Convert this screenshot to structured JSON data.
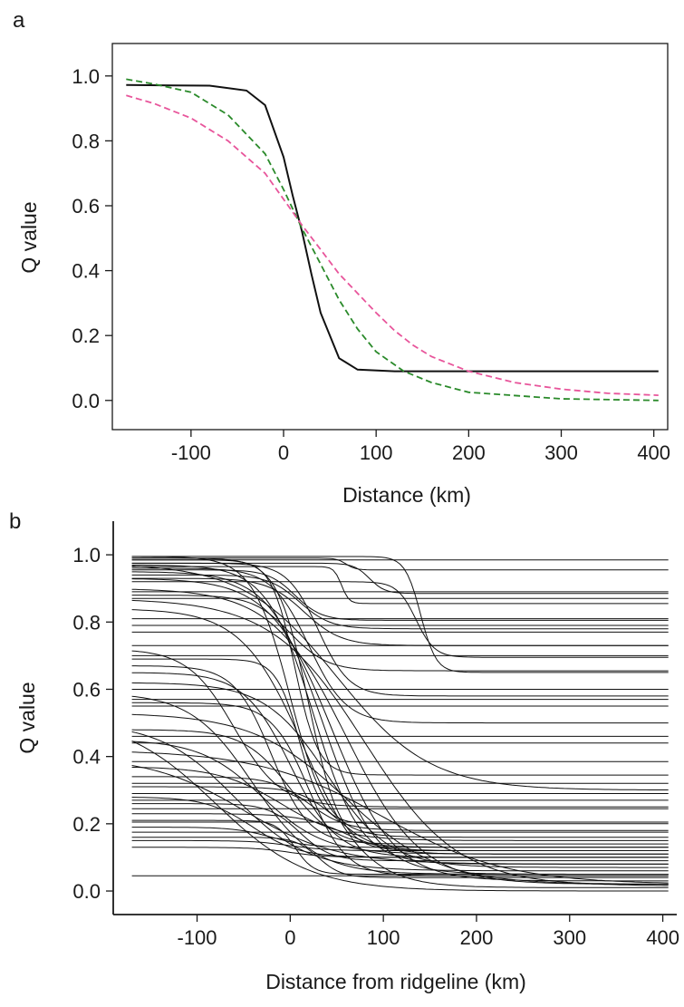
{
  "chart_data": [
    {
      "panel_label": "a",
      "type": "line",
      "xlabel": "Distance (km)",
      "ylabel": "Q value",
      "xlim": [
        -185,
        415
      ],
      "ylim": [
        -0.09,
        1.1
      ],
      "xticks": [
        -100,
        0,
        100,
        200,
        300,
        400
      ],
      "xtick_labels": [
        "-100",
        "0",
        "100",
        "200",
        "300",
        "400"
      ],
      "yticks": [
        0.0,
        0.2,
        0.4,
        0.6,
        0.8,
        1.0
      ],
      "ytick_labels": [
        "0.0",
        "0.2",
        "0.4",
        "0.6",
        "0.8",
        "1.0"
      ],
      "frame": "box",
      "grid": false,
      "legend": "none",
      "series": [
        {
          "style": "solid",
          "color": "#111111",
          "x": [
            -170,
            -120,
            -80,
            -40,
            -20,
            0,
            10,
            20,
            30,
            40,
            60,
            80,
            120,
            200,
            300,
            405
          ],
          "y": [
            0.972,
            0.971,
            0.97,
            0.955,
            0.91,
            0.75,
            0.63,
            0.52,
            0.39,
            0.27,
            0.13,
            0.095,
            0.09,
            0.09,
            0.09,
            0.09
          ]
        },
        {
          "style": "dashed",
          "color": "#2a8a2a",
          "x": [
            -170,
            -140,
            -100,
            -60,
            -20,
            0,
            20,
            40,
            60,
            80,
            100,
            130,
            160,
            200,
            300,
            405
          ],
          "y": [
            0.99,
            0.975,
            0.95,
            0.88,
            0.76,
            0.65,
            0.53,
            0.42,
            0.31,
            0.22,
            0.15,
            0.09,
            0.055,
            0.025,
            0.005,
            0.0
          ]
        },
        {
          "style": "dashed",
          "color": "#e8559b",
          "x": [
            -170,
            -140,
            -100,
            -60,
            -20,
            0,
            20,
            40,
            60,
            80,
            100,
            120,
            140,
            160,
            200,
            250,
            300,
            350,
            405
          ],
          "y": [
            0.94,
            0.915,
            0.87,
            0.8,
            0.7,
            0.62,
            0.54,
            0.465,
            0.39,
            0.33,
            0.27,
            0.215,
            0.17,
            0.135,
            0.09,
            0.055,
            0.035,
            0.022,
            0.016
          ]
        }
      ]
    },
    {
      "panel_label": "b",
      "type": "line",
      "xlabel": "Distance from ridgeline (km)",
      "ylabel": "Q value",
      "xlim": [
        -190,
        415
      ],
      "ylim": [
        -0.07,
        1.1
      ],
      "xticks": [
        -100,
        0,
        100,
        200,
        300,
        400
      ],
      "xtick_labels": [
        "-100",
        "0",
        "100",
        "200",
        "300",
        "400"
      ],
      "yticks": [
        0.0,
        0.2,
        0.4,
        0.6,
        0.8,
        1.0
      ],
      "ytick_labels": [
        "0.0",
        "0.2",
        "0.4",
        "0.6",
        "0.8",
        "1.0"
      ],
      "frame": "left-bottom",
      "grid": false,
      "legend": "none",
      "x_range": [
        -170,
        408
      ],
      "series_color": "#111111",
      "series": [
        {
          "y0": 0.985,
          "y1": 0.985,
          "x0": 70,
          "k": 0.2
        },
        {
          "y0": 0.99,
          "y1": 0.955,
          "x0": 60,
          "k": 0.2
        },
        {
          "y0": 0.975,
          "y1": 0.885,
          "x0": 85,
          "k": 0.12
        },
        {
          "y0": 0.965,
          "y1": 0.855,
          "x0": 55,
          "k": 0.25
        },
        {
          "y0": 0.955,
          "y1": 0.805,
          "x0": 5,
          "k": 0.07
        },
        {
          "y0": 0.94,
          "y1": 0.78,
          "x0": 10,
          "k": 0.06
        },
        {
          "y0": 0.93,
          "y1": 0.73,
          "x0": 15,
          "k": 0.05
        },
        {
          "y0": 0.92,
          "y1": 0.695,
          "x0": 135,
          "k": 0.1
        },
        {
          "y0": 0.995,
          "y1": 0.65,
          "x0": 140,
          "k": 0.12
        },
        {
          "y0": 0.88,
          "y1": 0.655,
          "x0": 0,
          "k": 0.05
        },
        {
          "y0": 0.975,
          "y1": 0.58,
          "x0": 30,
          "k": 0.06
        },
        {
          "y0": 0.96,
          "y1": 0.5,
          "x0": 20,
          "k": 0.05
        },
        {
          "y0": 0.985,
          "y1": 0.345,
          "x0": 5,
          "k": 0.08
        },
        {
          "y0": 0.975,
          "y1": 0.3,
          "x0": 50,
          "k": 0.02
        },
        {
          "y0": 0.995,
          "y1": 0.16,
          "x0": 0,
          "k": 0.05
        },
        {
          "y0": 0.99,
          "y1": 0.12,
          "x0": 20,
          "k": 0.06
        },
        {
          "y0": 0.97,
          "y1": 0.08,
          "x0": 25,
          "k": 0.04
        },
        {
          "y0": 0.95,
          "y1": 0.05,
          "x0": 35,
          "k": 0.035
        },
        {
          "y0": 0.93,
          "y1": 0.03,
          "x0": 45,
          "k": 0.03
        },
        {
          "y0": 0.9,
          "y1": 0.02,
          "x0": 60,
          "k": 0.025
        },
        {
          "y0": 0.87,
          "y1": 0.015,
          "x0": 80,
          "k": 0.02
        },
        {
          "y0": 0.84,
          "y1": 0.01,
          "x0": 15,
          "k": 0.03
        },
        {
          "y0": 0.72,
          "y1": 0.25,
          "x0": -60,
          "k": 0.04
        },
        {
          "y0": 0.69,
          "y1": 0.2,
          "x0": 10,
          "k": 0.08
        },
        {
          "y0": 0.67,
          "y1": 0.14,
          "x0": -20,
          "k": 0.05
        },
        {
          "y0": 0.65,
          "y1": 0.1,
          "x0": 0,
          "k": 0.04
        },
        {
          "y0": 0.62,
          "y1": 0.07,
          "x0": 40,
          "k": 0.03
        },
        {
          "y0": 0.59,
          "y1": 0.05,
          "x0": -40,
          "k": 0.03
        },
        {
          "y0": 0.56,
          "y1": 0.045,
          "x0": 20,
          "k": 0.05
        },
        {
          "y0": 0.53,
          "y1": 0.02,
          "x0": 60,
          "k": 0.02
        },
        {
          "y0": 0.52,
          "y1": 0.0,
          "x0": -80,
          "k": 0.02
        },
        {
          "y0": 0.5,
          "y1": 0.06,
          "x0": -60,
          "k": 0.025
        },
        {
          "y0": 0.48,
          "y1": 0.13,
          "x0": 0,
          "k": 0.04
        },
        {
          "y0": 0.45,
          "y1": 0.11,
          "x0": -30,
          "k": 0.03
        },
        {
          "y0": 0.42,
          "y1": 0.02,
          "x0": 100,
          "k": 0.015
        },
        {
          "y0": 0.4,
          "y1": 0.08,
          "x0": -50,
          "k": 0.02
        },
        {
          "y0": 0.37,
          "y1": 0.15,
          "x0": -10,
          "k": 0.03
        },
        {
          "y0": 0.34,
          "y1": 0.18,
          "x0": 20,
          "k": 0.05
        },
        {
          "y0": 0.31,
          "y1": 0.12,
          "x0": 50,
          "k": 0.05
        },
        {
          "y0": 0.28,
          "y1": 0.1,
          "x0": -40,
          "k": 0.04
        },
        {
          "y0": 0.26,
          "y1": 0.09,
          "x0": 10,
          "k": 0.06
        },
        {
          "y0": 0.23,
          "y1": 0.11,
          "x0": 60,
          "k": 0.04
        },
        {
          "y0": 0.21,
          "y1": 0.05,
          "x0": 5,
          "k": 0.1
        },
        {
          "y0": 0.19,
          "y1": 0.13,
          "x0": -20,
          "k": 0.05
        },
        {
          "y0": 0.16,
          "y1": 0.04,
          "x0": 30,
          "k": 0.08
        },
        {
          "y0": 0.15,
          "y1": 0.12,
          "x0": 0,
          "k": 0.05
        },
        {
          "y0": 0.13,
          "y1": 0.1,
          "x0": 0,
          "k": 0.05
        },
        {
          "y0": 0.045,
          "y1": 0.045,
          "x0": 0,
          "k": 0.05
        },
        {
          "y0": 0.89,
          "y1": 0.89,
          "x0": 0,
          "k": 0.05
        },
        {
          "y0": 0.87,
          "y1": 0.87,
          "x0": 0,
          "k": 0.05
        },
        {
          "y0": 0.81,
          "y1": 0.81,
          "x0": 0,
          "k": 0.05
        },
        {
          "y0": 0.79,
          "y1": 0.79,
          "x0": 0,
          "k": 0.05
        },
        {
          "y0": 0.77,
          "y1": 0.77,
          "x0": 0,
          "k": 0.05
        },
        {
          "y0": 0.73,
          "y1": 0.73,
          "x0": 0,
          "k": 0.05
        },
        {
          "y0": 0.7,
          "y1": 0.7,
          "x0": 0,
          "k": 0.05
        },
        {
          "y0": 0.6,
          "y1": 0.6,
          "x0": 0,
          "k": 0.05
        },
        {
          "y0": 0.57,
          "y1": 0.57,
          "x0": 0,
          "k": 0.05
        },
        {
          "y0": 0.55,
          "y1": 0.55,
          "x0": 0,
          "k": 0.05
        },
        {
          "y0": 0.46,
          "y1": 0.46,
          "x0": 0,
          "k": 0.05
        },
        {
          "y0": 0.44,
          "y1": 0.44,
          "x0": 0,
          "k": 0.05
        },
        {
          "y0": 0.385,
          "y1": 0.385,
          "x0": 0,
          "k": 0.05
        },
        {
          "y0": 0.32,
          "y1": 0.32,
          "x0": 0,
          "k": 0.05
        },
        {
          "y0": 0.29,
          "y1": 0.29,
          "x0": 0,
          "k": 0.05
        },
        {
          "y0": 0.27,
          "y1": 0.27,
          "x0": 0,
          "k": 0.05
        },
        {
          "y0": 0.245,
          "y1": 0.245,
          "x0": 0,
          "k": 0.05
        },
        {
          "y0": 0.205,
          "y1": 0.205,
          "x0": 0,
          "k": 0.05
        },
        {
          "y0": 0.175,
          "y1": 0.175,
          "x0": 0,
          "k": 0.05
        }
      ]
    }
  ]
}
